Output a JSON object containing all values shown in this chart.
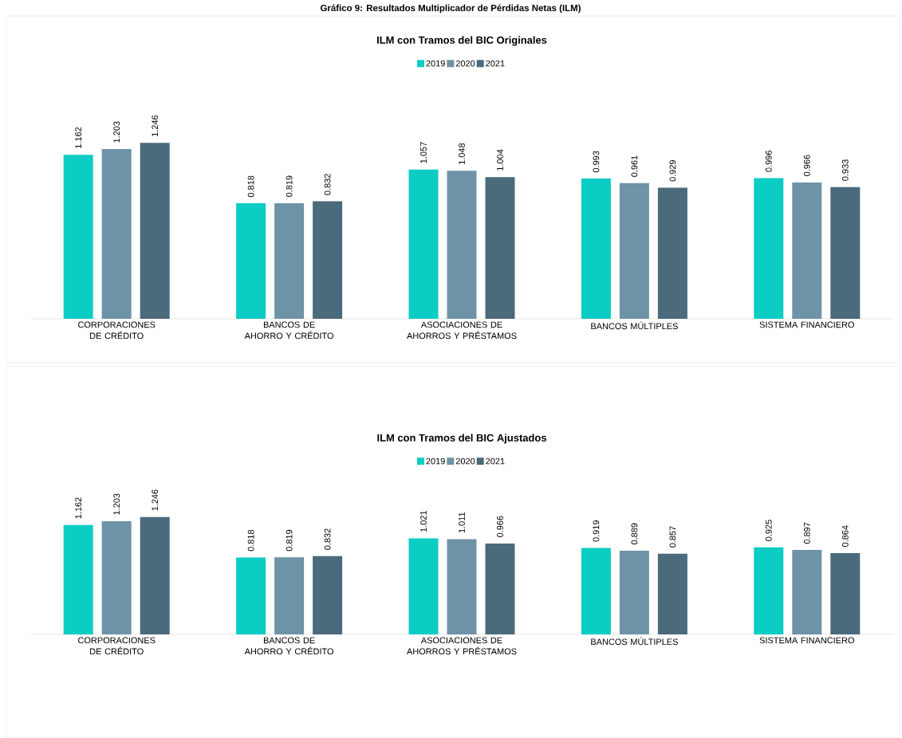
{
  "chart_data": [
    {
      "type": "bar",
      "title": "ILM con Tramos del BIC Originales",
      "annotations": [
        "Gráfico 9: Resultados Multiplicador de Pérdidas Netas (ILM)"
      ],
      "categories": [
        "CORPORACIONES DE CRÉDITO",
        "BANCOS DE AHORRO Y CRÉDITO",
        "ASOCIACIONES DE AHORROS Y PRÉSTAMOS",
        "BANCOS MÚLTIPLES",
        "SISTEMA FINANCIERO"
      ],
      "series": [
        {
          "name": "2019",
          "color": "#0ccdc4",
          "values": [
            1.162,
            0.818,
            1.057,
            0.993,
            0.996
          ]
        },
        {
          "name": "2020",
          "color": "#6f93a6",
          "values": [
            1.203,
            0.819,
            1.048,
            0.961,
            0.966
          ]
        },
        {
          "name": "2021",
          "color": "#4b6a7b",
          "values": [
            1.246,
            0.832,
            1.004,
            0.929,
            0.933
          ]
        }
      ],
      "data_labels": true,
      "legend": "top"
    },
    {
      "type": "bar",
      "title": "ILM con Tramos del BIC Ajustados",
      "categories": [
        "CORPORACIONES DE CRÉDITO",
        "BANCOS DE AHORRO Y CRÉDITO",
        "ASOCIACIONES DE AHORROS Y PRÉSTAMOS",
        "BANCOS MÚLTIPLES",
        "SISTEMA FINANCIERO"
      ],
      "series": [
        {
          "name": "2019",
          "color": "#0ccdc4",
          "values": [
            1.162,
            0.818,
            1.021,
            0.919,
            0.925
          ]
        },
        {
          "name": "2020",
          "color": "#6f93a6",
          "values": [
            1.203,
            0.819,
            1.011,
            0.889,
            0.897
          ]
        },
        {
          "name": "2021",
          "color": "#4b6a7b",
          "values": [
            1.246,
            0.832,
            0.966,
            0.857,
            0.864
          ]
        }
      ],
      "data_labels": true,
      "legend": "top"
    }
  ]
}
